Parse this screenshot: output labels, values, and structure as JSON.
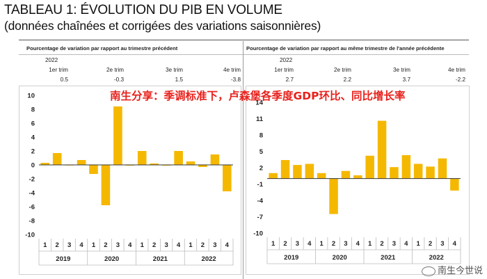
{
  "title": {
    "line1": "TABLEAU 1: ÉVOLUTION DU PIB EN VOLUME",
    "line2": "(données chaînées et corrigées des variations saisonnières)"
  },
  "left_table": {
    "header": "Pourcentage de variation par rapport au trimestre précédent",
    "year": "2022",
    "quarters": [
      "1er trim",
      "2e trim",
      "3e trim",
      "4e trim"
    ],
    "values": [
      "0.5",
      "-0.3",
      "1.5",
      "-3.8"
    ]
  },
  "right_table": {
    "header": "Pourcentage de variation par rapport au même trimestre de l'année précédente",
    "year": "2022",
    "quarters": [
      "1er trim",
      "2e trim",
      "3e trim",
      "4e trim"
    ],
    "values": [
      "2.7",
      "2.2",
      "3.7",
      "-2.2"
    ]
  },
  "annotation": "南生分享：季调标准下，卢森堡各季度GDP环比、同比增长率",
  "watermark": "南生今世说",
  "colors": {
    "bar": "#f5b800",
    "annotation": "#e8211c",
    "axis": "#333333"
  },
  "chart_data": [
    {
      "type": "bar",
      "title": "Pourcentage de variation par rapport au trimestre précédent",
      "categories": [
        "1",
        "2",
        "3",
        "4",
        "1",
        "2",
        "3",
        "4",
        "1",
        "2",
        "3",
        "4",
        "1",
        "2",
        "3",
        "4"
      ],
      "years": [
        "2019",
        "2020",
        "2021",
        "2022"
      ],
      "values": [
        0.3,
        1.7,
        0.0,
        0.7,
        -1.3,
        -5.8,
        8.4,
        -0.1,
        2.0,
        0.2,
        -0.1,
        2.0,
        0.5,
        -0.3,
        1.5,
        -3.8
      ],
      "yticks": [
        10,
        8,
        6,
        4,
        2,
        0,
        -2,
        -4,
        -6,
        -8,
        -10
      ],
      "ylim": [
        -10,
        10
      ],
      "xlabel": "",
      "ylabel": ""
    },
    {
      "type": "bar",
      "title": "Pourcentage de variation par rapport au même trimestre de l'année précédente",
      "categories": [
        "1",
        "2",
        "3",
        "4",
        "1",
        "2",
        "3",
        "4",
        "1",
        "2",
        "3",
        "4",
        "1",
        "2",
        "3",
        "4"
      ],
      "years": [
        "2019",
        "2020",
        "2021",
        "2022"
      ],
      "values": [
        1.0,
        3.4,
        2.5,
        2.7,
        1.0,
        -6.5,
        1.4,
        0.6,
        4.2,
        10.6,
        2.1,
        4.3,
        2.7,
        2.2,
        3.7,
        -2.2
      ],
      "yticks": [
        14,
        11,
        8,
        5,
        2,
        -1,
        -4,
        -7,
        -10
      ],
      "ylim": [
        -10,
        14
      ],
      "xlabel": "",
      "ylabel": ""
    }
  ]
}
